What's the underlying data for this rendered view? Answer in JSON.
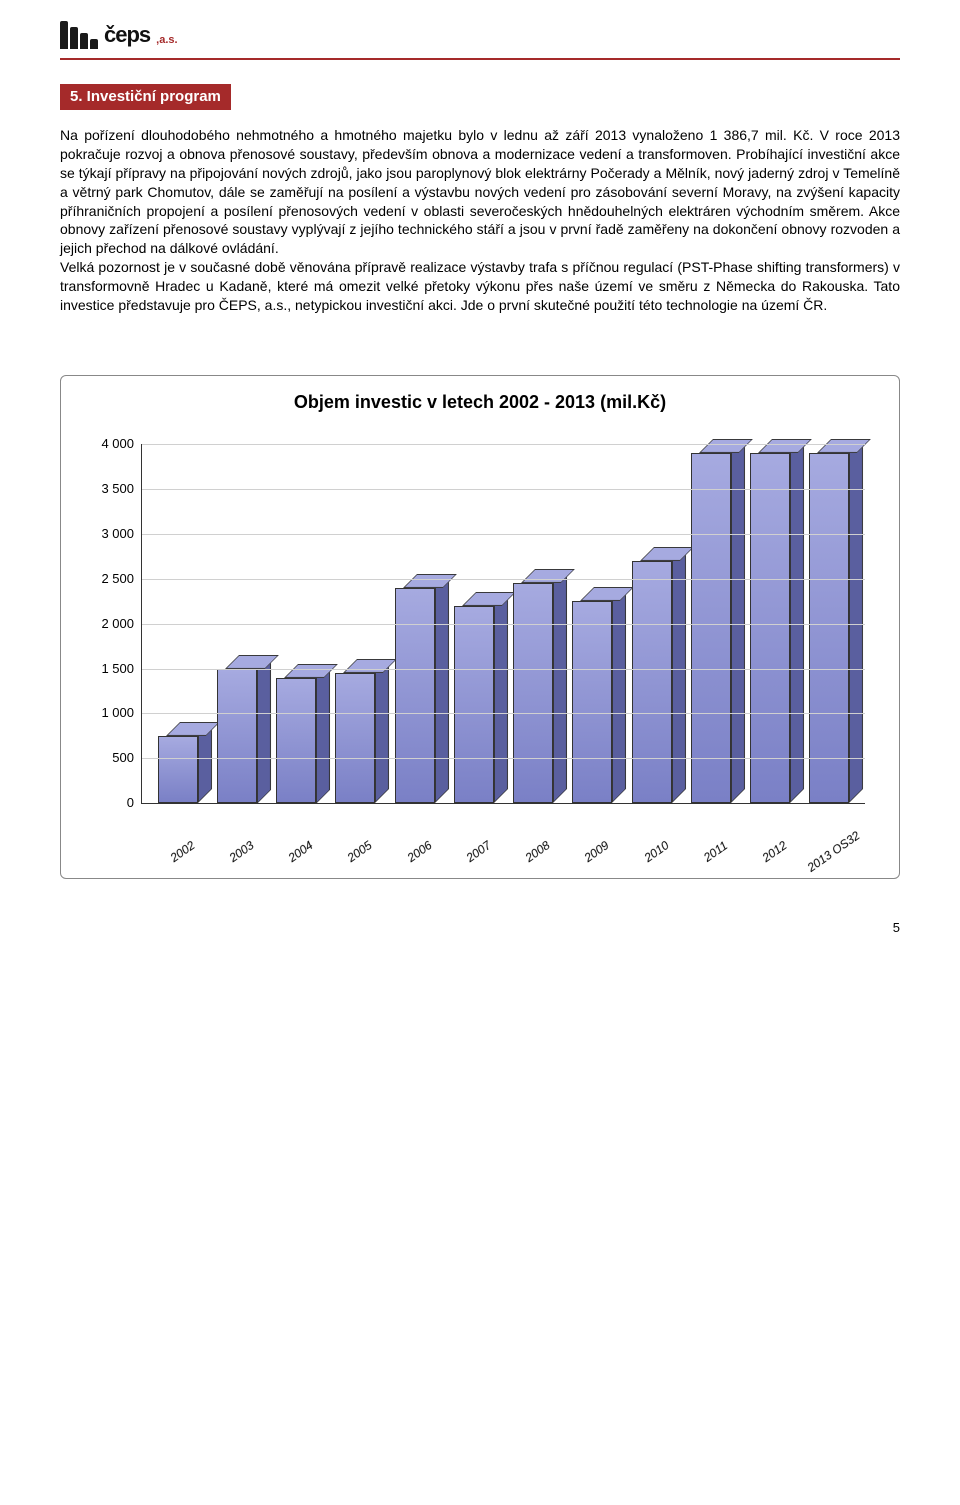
{
  "logo": {
    "brand": "čeps",
    "suffix": ",a.s."
  },
  "section": {
    "heading": "5. Investiční program"
  },
  "paragraphs": {
    "p1": "Na pořízení dlouhodobého nehmotného a hmotného majetku bylo v lednu až září 2013 vynaloženo 1 386,7 mil. Kč. V roce 2013 pokračuje rozvoj a obnova přenosové soustavy, především obnova a modernizace vedení a transformoven. Probíhající investiční akce se týkají přípravy na připojování nových zdrojů, jako jsou paroplynový blok elektrárny Počerady a Mělník, nový jaderný zdroj v Temelíně a větrný park Chomutov, dále se zaměřují na posílení a výstavbu nových vedení pro zásobování severní Moravy, na zvýšení kapacity příhraničních propojení a posílení přenosových vedení v oblasti severočeských hnědouhelných elektráren východním směrem. Akce obnovy zařízení přenosové soustavy vyplývají z jejího technického stáří a jsou v první řadě zaměřeny na dokončení obnovy rozvoden a jejich přechod na dálkové ovládání.",
    "p2": "Velká pozornost je v současné době věnována přípravě realizace výstavby trafa s příčnou regulací (PST-Phase shifting transformers) v transformovně Hradec u Kadaně, které má omezit velké přetoky výkonu přes naše území ve směru z Německa do Rakouska. Tato investice představuje pro ČEPS, a.s., netypickou investiční akci. Jde o první skutečné použití této technologie na území ČR."
  },
  "chart": {
    "type": "bar",
    "title": "Objem investic v letech 2002 - 2013 (mil.Kč)",
    "categories": [
      "2002",
      "2003",
      "2004",
      "2005",
      "2006",
      "2007",
      "2008",
      "2009",
      "2010",
      "2011",
      "2012",
      "2013 OS32"
    ],
    "values": [
      750,
      1500,
      1400,
      1450,
      2400,
      2200,
      2450,
      2250,
      2700,
      3900,
      3900,
      3900
    ],
    "ylim": [
      0,
      4000
    ],
    "ytick_step": 500,
    "yticks": [
      "0",
      "500",
      "1 000",
      "1 500",
      "2 000",
      "2 500",
      "3 000",
      "3 500",
      "4 000"
    ],
    "bar_face_color": "#7a80c6",
    "bar_top_color": "#a6aae0",
    "bar_side_color": "#5a5f9f",
    "grid_color": "#d0d0d0",
    "border_color": "#888888",
    "title_fontsize": 18,
    "label_fontsize": 13,
    "xlabel_rotation": -35
  },
  "page": {
    "number": "5"
  }
}
